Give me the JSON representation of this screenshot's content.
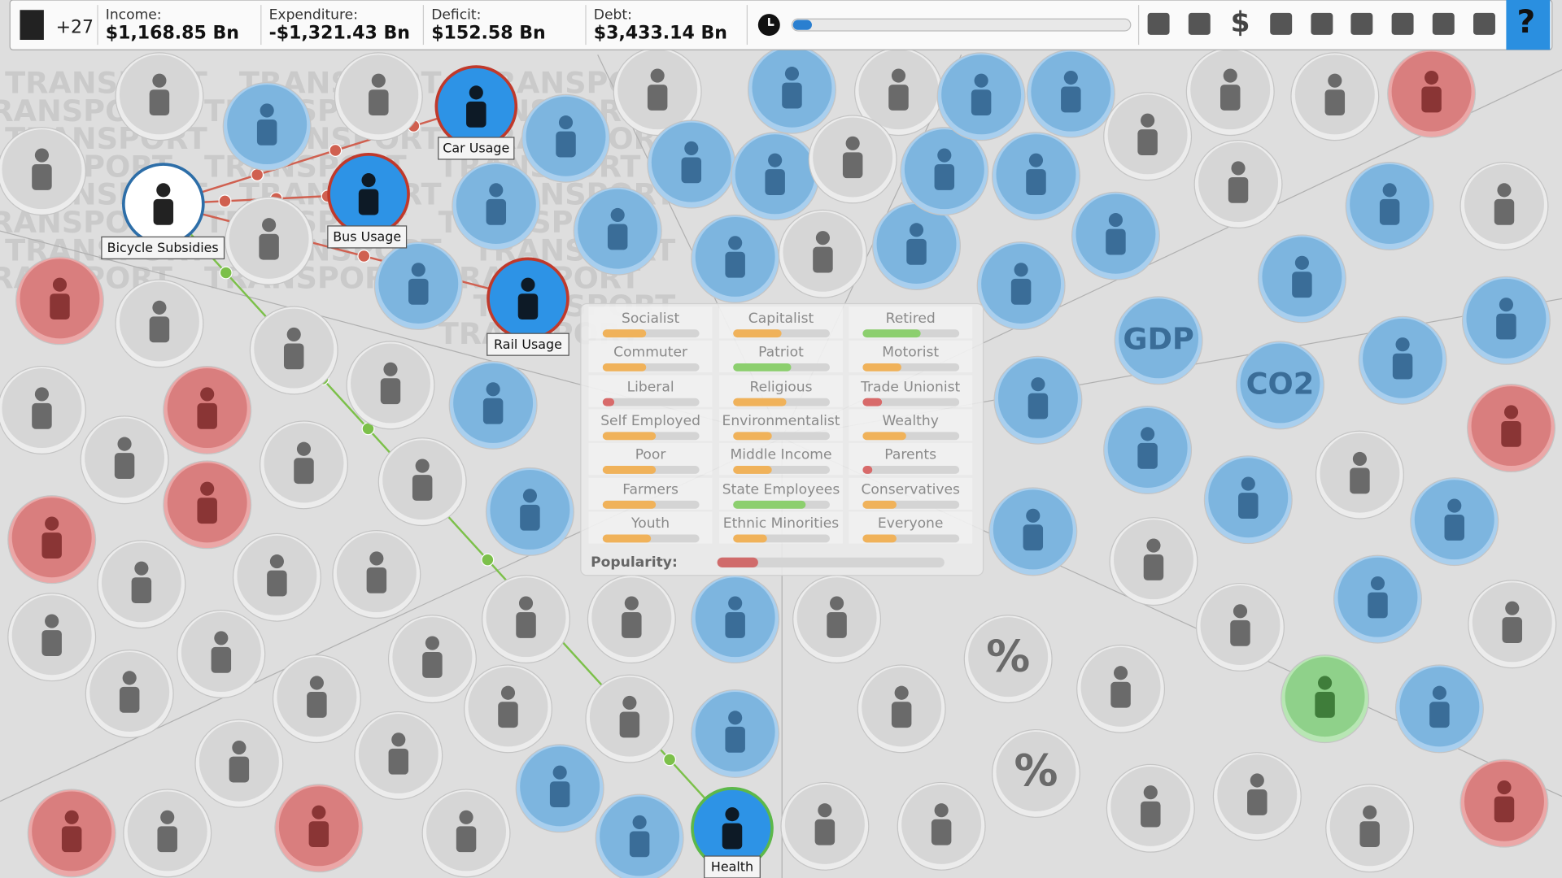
{
  "top_bar": {
    "approval": "+27",
    "stats": [
      {
        "label": "Income:",
        "value": "$1,168.85 Bn"
      },
      {
        "label": "Expenditure:",
        "value": "-$1,321.43 Bn"
      },
      {
        "label": "Deficit:",
        "value": "$152.58 Bn"
      },
      {
        "label": "Debt:",
        "value": "$3,433.14 Bn"
      }
    ],
    "toolbar_text": [
      "$",
      "?"
    ]
  },
  "background_text": "TRANSPORT",
  "node_labels": [
    "Car Usage",
    "Bus Usage",
    "Bicycle Subsidies",
    "Rail Usage",
    "Health"
  ],
  "icon_texts": [
    "GDP",
    "CO2",
    "%",
    "%"
  ],
  "voter_panel": {
    "groups": [
      {
        "name": "Socialist",
        "value": 45,
        "color": "#f0b25a"
      },
      {
        "name": "Capitalist",
        "value": 50,
        "color": "#f0b25a"
      },
      {
        "name": "Retired",
        "value": 60,
        "color": "#8ccf6e"
      },
      {
        "name": "Commuter",
        "value": 45,
        "color": "#f0b25a"
      },
      {
        "name": "Patriot",
        "value": 60,
        "color": "#8ccf6e"
      },
      {
        "name": "Motorist",
        "value": 40,
        "color": "#f0b25a"
      },
      {
        "name": "Liberal",
        "value": 12,
        "color": "#d86a6a"
      },
      {
        "name": "Religious",
        "value": 55,
        "color": "#f0b25a"
      },
      {
        "name": "Trade Unionist",
        "value": 20,
        "color": "#d86a6a"
      },
      {
        "name": "Self Employed",
        "value": 55,
        "color": "#f0b25a"
      },
      {
        "name": "Environmentalist",
        "value": 40,
        "color": "#f0b25a"
      },
      {
        "name": "Wealthy",
        "value": 45,
        "color": "#f0b25a"
      },
      {
        "name": "Poor",
        "value": 55,
        "color": "#f0b25a"
      },
      {
        "name": "Middle Income",
        "value": 40,
        "color": "#f0b25a"
      },
      {
        "name": "Parents",
        "value": 10,
        "color": "#d86a6a"
      },
      {
        "name": "Farmers",
        "value": 55,
        "color": "#f0b25a"
      },
      {
        "name": "State Employees",
        "value": 75,
        "color": "#8ccf6e"
      },
      {
        "name": "Conservatives",
        "value": 35,
        "color": "#f0b25a"
      },
      {
        "name": "Youth",
        "value": 50,
        "color": "#f0b25a"
      },
      {
        "name": "Ethnic Minorities",
        "value": 35,
        "color": "#f0b25a"
      },
      {
        "name": "Everyone",
        "value": 35,
        "color": "#f0b25a"
      }
    ],
    "popularity_label": "Popularity:",
    "popularity": {
      "value": 18,
      "color": "#d06b6b"
    }
  }
}
